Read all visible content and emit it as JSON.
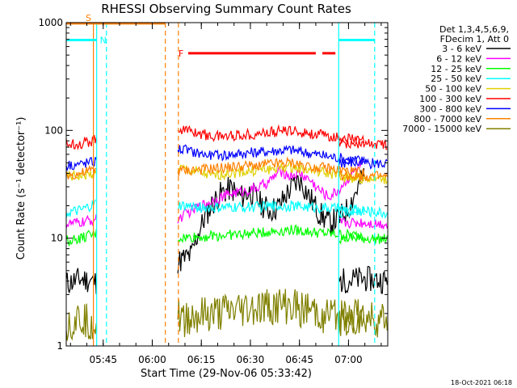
{
  "chart_data": {
    "type": "line",
    "title": "RHESSI Observing Summary Count Rates",
    "xlabel": "Start Time (29-Nov-06 05:33:42)",
    "ylabel": "Count Rate (s⁻¹ detector⁻¹)",
    "y_scale": "log",
    "ylim": [
      1,
      1000
    ],
    "xlim_minutes": [
      "05:33:42",
      "07:12:00"
    ],
    "x_ticks": [
      "05:45",
      "06:00",
      "06:15",
      "06:30",
      "06:45",
      "07:00"
    ],
    "y_ticks": [
      "1",
      "10",
      "100",
      "1000"
    ],
    "legend": {
      "header": [
        "Det 1,3,4,5,6,9,",
        "FDecim 1, Att 0"
      ],
      "placement": "right"
    },
    "flags": [
      {
        "label": "S",
        "color": "#ff8000",
        "from": "05:33:42",
        "to": "06:04",
        "level": 985
      },
      {
        "label": "N",
        "color": "#00ffff",
        "from": "05:33:42",
        "to": "05:43",
        "level": 690
      },
      {
        "label": "N",
        "color": "#00ffff",
        "from": "06:57",
        "to": "07:08",
        "level": 690
      },
      {
        "label": "F",
        "color": "#ff0000",
        "from": "06:11",
        "to": "06:50",
        "level": 520
      },
      {
        "label": "F",
        "color": "#ff0000",
        "from": "06:52",
        "to": "06:56",
        "level": 520
      }
    ],
    "vertical_markers": [
      {
        "time": "05:42",
        "color": "#ff8000",
        "style": "solid"
      },
      {
        "time": "05:43",
        "color": "#00ffff",
        "style": "solid"
      },
      {
        "time": "05:46",
        "color": "#00ffff",
        "style": "dashed"
      },
      {
        "time": "06:04",
        "color": "#ff8000",
        "style": "dashed"
      },
      {
        "time": "06:08",
        "color": "#ff8000",
        "style": "dashed"
      },
      {
        "time": "06:57",
        "color": "#00ffff",
        "style": "solid"
      },
      {
        "time": "07:08",
        "color": "#00ffff",
        "style": "dashed"
      }
    ],
    "gap": {
      "from": "05:44",
      "to": "06:08"
    },
    "series": [
      {
        "name": "3 - 6 keV",
        "color": "#000000",
        "pre": [
          3.8,
          4.2,
          3.9
        ],
        "points": [
          [
            6.13,
            6
          ],
          [
            6.2,
            7
          ],
          [
            6.25,
            13
          ],
          [
            6.3,
            20
          ],
          [
            6.35,
            26
          ],
          [
            6.4,
            29
          ],
          [
            6.45,
            24
          ],
          [
            6.5,
            27
          ],
          [
            6.55,
            21
          ],
          [
            6.6,
            18
          ],
          [
            6.65,
            20
          ],
          [
            6.7,
            28
          ],
          [
            6.75,
            35
          ],
          [
            6.8,
            24
          ],
          [
            6.85,
            17
          ],
          [
            6.9,
            14
          ],
          [
            6.95,
            15
          ],
          [
            7.0,
            19
          ],
          [
            7.05,
            30
          ],
          [
            7.08,
            38
          ]
        ],
        "post": [
          4.0,
          4.2,
          4.0
        ]
      },
      {
        "name": "6 - 12 keV",
        "color": "#ff00ff",
        "pre": [
          13.5,
          14,
          15
        ],
        "points": [
          [
            6.13,
            15
          ],
          [
            6.2,
            18
          ],
          [
            6.3,
            22
          ],
          [
            6.4,
            26
          ],
          [
            6.5,
            28
          ],
          [
            6.55,
            30
          ],
          [
            6.6,
            34
          ],
          [
            6.65,
            42
          ],
          [
            6.7,
            38
          ],
          [
            6.75,
            40
          ],
          [
            6.8,
            35
          ],
          [
            6.85,
            28
          ],
          [
            6.9,
            24
          ],
          [
            6.95,
            28
          ],
          [
            7.0,
            36
          ],
          [
            7.05,
            45
          ],
          [
            7.08,
            50
          ]
        ],
        "post": [
          14,
          14,
          13.5
        ]
      },
      {
        "name": "12 - 25 keV",
        "color": "#00ff00",
        "pre": [
          9.5,
          10,
          11
        ],
        "points": [
          [
            6.13,
            10
          ],
          [
            6.3,
            10.5
          ],
          [
            6.5,
            11
          ],
          [
            6.7,
            12
          ],
          [
            6.9,
            11
          ],
          [
            7.08,
            10.5
          ]
        ],
        "post": [
          10,
          10,
          9.8
        ]
      },
      {
        "name": "25 - 50 keV",
        "color": "#00ffff",
        "pre": [
          17,
          18,
          21
        ],
        "points": [
          [
            6.13,
            20
          ],
          [
            6.3,
            19
          ],
          [
            6.5,
            19.5
          ],
          [
            6.7,
            20
          ],
          [
            6.9,
            19
          ],
          [
            7.08,
            18
          ]
        ],
        "post": [
          17,
          18,
          17
        ]
      },
      {
        "name": "50 - 100 keV",
        "color": "#e0d000",
        "pre": [
          37,
          38,
          40
        ],
        "points": [
          [
            6.13,
            45
          ],
          [
            6.3,
            38
          ],
          [
            6.5,
            42
          ],
          [
            6.7,
            46
          ],
          [
            6.9,
            40
          ],
          [
            7.08,
            36
          ]
        ],
        "post": [
          36,
          36,
          35
        ]
      },
      {
        "name": "100 - 300 keV",
        "color": "#ff0000",
        "pre": [
          75,
          76,
          82
        ],
        "points": [
          [
            6.13,
            105
          ],
          [
            6.3,
            88
          ],
          [
            6.5,
            92
          ],
          [
            6.7,
            100
          ],
          [
            6.9,
            88
          ],
          [
            7.08,
            80
          ]
        ],
        "post": [
          76,
          75,
          75
        ]
      },
      {
        "name": "300 - 800 keV",
        "color": "#0000ff",
        "pre": [
          48,
          49,
          52
        ],
        "points": [
          [
            6.13,
            68
          ],
          [
            6.3,
            58
          ],
          [
            6.5,
            62
          ],
          [
            6.7,
            66
          ],
          [
            6.9,
            57
          ],
          [
            7.08,
            52
          ]
        ],
        "post": [
          50,
          50,
          49
        ]
      },
      {
        "name": "800 - 7000 keV",
        "color": "#ff8000",
        "pre": [
          38,
          40,
          44
        ],
        "points": [
          [
            6.13,
            42
          ],
          [
            6.3,
            44
          ],
          [
            6.5,
            47
          ],
          [
            6.7,
            50
          ],
          [
            6.9,
            44
          ],
          [
            7.08,
            40
          ]
        ],
        "post": [
          38,
          38,
          37
        ]
      },
      {
        "name": "7000 - 15000 keV",
        "color": "#808000",
        "pre": [
          1.6,
          1.8,
          1.6
        ],
        "points": [
          [
            6.13,
            1.8
          ],
          [
            6.3,
            1.9
          ],
          [
            6.5,
            2.2
          ],
          [
            6.7,
            2.3
          ],
          [
            6.9,
            1.9
          ],
          [
            7.08,
            1.8
          ]
        ],
        "post": [
          1.8,
          1.8,
          1.7
        ]
      }
    ]
  },
  "footer": "18-Oct-2021 06:18"
}
